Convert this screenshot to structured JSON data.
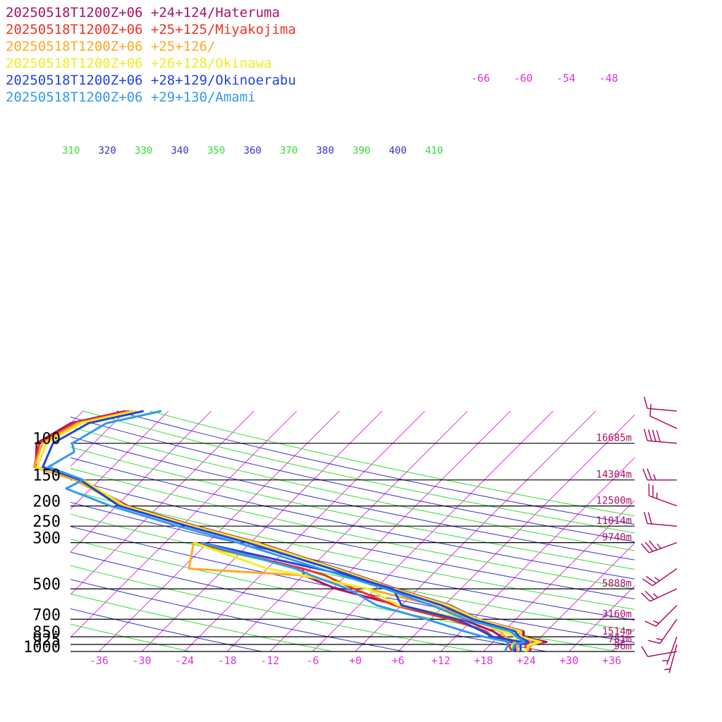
{
  "colors": {
    "isobar": "#000000",
    "isotherm": "#dd33dd",
    "adiabat_blue": "#3333cc",
    "adiabat_green": "#33dd33",
    "barb": "#aa1166"
  },
  "legend": [
    {
      "label": "20250518T1200Z+06 +24+124/Hateruma",
      "color": "#aa1166"
    },
    {
      "label": "20250518T1200Z+06 +25+125/Miyakojima",
      "color": "#ee3322"
    },
    {
      "label": "20250518T1200Z+06 +25+126/",
      "color": "#ffaa22"
    },
    {
      "label": "20250518T1200Z+06 +26+128/Okinawa",
      "color": "#eeee22"
    },
    {
      "label": "20250518T1200Z+06 +28+129/Okinoerabu",
      "color": "#2244dd"
    },
    {
      "label": "20250518T1200Z+06 +29+130/Amami",
      "color": "#3399ee"
    }
  ],
  "chart_data": {
    "type": "line",
    "title": "",
    "xlabel": "",
    "ylabel": "",
    "pressure_levels": [
      {
        "p": 100,
        "label": "100",
        "height": "16685m"
      },
      {
        "p": 150,
        "label": "150",
        "height": "14304m"
      },
      {
        "p": 200,
        "label": "200",
        "height": "12500m"
      },
      {
        "p": 250,
        "label": "250",
        "height": "11014m"
      },
      {
        "p": 300,
        "label": "300",
        "height": "9740m"
      },
      {
        "p": 500,
        "label": "500",
        "height": "5888m"
      },
      {
        "p": 700,
        "label": "700",
        "height": "3160m"
      },
      {
        "p": 850,
        "label": "850",
        "height": "1514m"
      },
      {
        "p": 925,
        "label": "925",
        "height": "781m"
      },
      {
        "p": 1000,
        "label": "1000",
        "height": "96m"
      }
    ],
    "x_ticks": [
      {
        "v": -36,
        "label": "-36"
      },
      {
        "v": -30,
        "label": "-30"
      },
      {
        "v": -24,
        "label": "-24"
      },
      {
        "v": -18,
        "label": "-18"
      },
      {
        "v": -12,
        "label": "-12"
      },
      {
        "v": -6,
        "label": "-6"
      },
      {
        "v": 0,
        "label": "+0"
      },
      {
        "v": 6,
        "label": "+6"
      },
      {
        "v": 12,
        "label": "+12"
      },
      {
        "v": 18,
        "label": "+18"
      },
      {
        "v": 24,
        "label": "+24"
      },
      {
        "v": 30,
        "label": "+30"
      },
      {
        "v": 36,
        "label": "+36"
      }
    ],
    "upper_temp_labels": [
      "-66",
      "-60",
      "-54",
      "-48"
    ],
    "theta_labels": [
      {
        "label": "310",
        "green": true
      },
      {
        "label": "320",
        "green": false
      },
      {
        "label": "330",
        "green": true
      },
      {
        "label": "340",
        "green": false
      },
      {
        "label": "350",
        "green": true
      },
      {
        "label": "360",
        "green": false
      },
      {
        "label": "370",
        "green": true
      },
      {
        "label": "380",
        "green": false
      },
      {
        "label": "390",
        "green": true
      },
      {
        "label": "400",
        "green": false
      },
      {
        "label": "410",
        "green": true
      }
    ],
    "series": [
      {
        "name": "20250518T1200Z+06 +24+124/Hateruma",
        "temperature": [
          [
            1000,
            24.6
          ],
          [
            925,
            23.4
          ],
          [
            900,
            25.5
          ],
          [
            850,
            21.6
          ],
          [
            800,
            20.8
          ],
          [
            700,
            12.8
          ],
          [
            600,
            6.8
          ],
          [
            500,
            -3.1
          ],
          [
            400,
            -14.1
          ],
          [
            300,
            -29.0
          ],
          [
            250,
            -40.0
          ],
          [
            200,
            -52.4
          ],
          [
            150,
            -62.9
          ],
          [
            130,
            -70.8
          ],
          [
            100,
            -74.0
          ],
          [
            80,
            -72.0
          ],
          [
            70,
            -66.0
          ]
        ],
        "dewpoint": [
          [
            1000,
            22.5
          ],
          [
            925,
            21.4
          ],
          [
            900,
            20.5
          ],
          [
            850,
            18.5
          ],
          [
            800,
            16.5
          ],
          [
            700,
            10.5
          ],
          [
            600,
            -0.5
          ],
          [
            500,
            -11.5
          ],
          [
            430,
            -18.0
          ],
          [
            400,
            -19.0
          ],
          [
            300,
            -38.0
          ]
        ]
      },
      {
        "name": "20250518T1200Z+06 +25+125/Miyakojima",
        "temperature": [
          [
            1000,
            24.2
          ],
          [
            925,
            22.8
          ],
          [
            900,
            24.0
          ],
          [
            850,
            21.3
          ],
          [
            800,
            20.6
          ],
          [
            700,
            12.6
          ],
          [
            600,
            6.4
          ],
          [
            500,
            -3.3
          ],
          [
            400,
            -14.3
          ],
          [
            300,
            -29.2
          ],
          [
            250,
            -40.2
          ],
          [
            200,
            -52.6
          ],
          [
            150,
            -63.3
          ],
          [
            130,
            -71.0
          ],
          [
            100,
            -73.6
          ],
          [
            80,
            -71.5
          ],
          [
            70,
            -65.5
          ]
        ],
        "dewpoint": [
          [
            1000,
            22.0
          ],
          [
            925,
            20.5
          ],
          [
            900,
            20.0
          ],
          [
            850,
            17.2
          ],
          [
            800,
            15.5
          ],
          [
            700,
            8.8
          ],
          [
            600,
            -1.0
          ],
          [
            500,
            -9.0
          ],
          [
            430,
            -15.0
          ],
          [
            400,
            -19.0
          ],
          [
            300,
            -38.0
          ]
        ]
      },
      {
        "name": "20250518T1200Z+06 +25+126/",
        "temperature": [
          [
            1000,
            24.0
          ],
          [
            925,
            23.8
          ],
          [
            900,
            24.8
          ],
          [
            850,
            21.0
          ],
          [
            800,
            20.2
          ],
          [
            700,
            12.4
          ],
          [
            600,
            6.2
          ],
          [
            500,
            -3.5
          ],
          [
            400,
            -14.5
          ],
          [
            300,
            -29.6
          ],
          [
            250,
            -40.5
          ],
          [
            200,
            -53.0
          ],
          [
            150,
            -63.5
          ],
          [
            130,
            -71.0
          ],
          [
            100,
            -73.2
          ],
          [
            80,
            -71.0
          ],
          [
            70,
            -65.0
          ]
        ],
        "dewpoint": [
          [
            1000,
            22.8
          ],
          [
            925,
            21.6
          ],
          [
            900,
            21.2
          ],
          [
            850,
            19.0
          ],
          [
            800,
            17.5
          ],
          [
            700,
            11.8
          ],
          [
            600,
            4.5
          ],
          [
            500,
            -7.0
          ],
          [
            430,
            -18.5
          ],
          [
            400,
            -35.0
          ],
          [
            300,
            -38.0
          ]
        ]
      },
      {
        "name": "20250518T1200Z+06 +26+128/Okinawa",
        "temperature": [
          [
            1000,
            23.8
          ],
          [
            925,
            23.5
          ],
          [
            900,
            24.6
          ],
          [
            850,
            21.2
          ],
          [
            800,
            20.4
          ],
          [
            700,
            12.7
          ],
          [
            600,
            6.5
          ],
          [
            500,
            -3.4
          ],
          [
            400,
            -14.4
          ],
          [
            300,
            -29.4
          ],
          [
            250,
            -40.4
          ],
          [
            200,
            -52.8
          ],
          [
            150,
            -62.3
          ],
          [
            130,
            -70.6
          ],
          [
            100,
            -72.6
          ],
          [
            80,
            -70.5
          ],
          [
            70,
            -64.5
          ]
        ],
        "dewpoint": [
          [
            1000,
            22.2
          ],
          [
            925,
            21.0
          ],
          [
            900,
            21.5
          ],
          [
            850,
            20.5
          ],
          [
            800,
            18.0
          ],
          [
            700,
            11.2
          ],
          [
            600,
            -0.5
          ],
          [
            500,
            -7.0
          ],
          [
            430,
            -18.0
          ],
          [
            400,
            -24.0
          ],
          [
            300,
            -38.0
          ]
        ]
      },
      {
        "name": "20250518T1200Z+06 +28+129/Okinoerabu",
        "temperature": [
          [
            1000,
            23.2
          ],
          [
            925,
            22.2
          ],
          [
            900,
            23.0
          ],
          [
            850,
            20.9
          ],
          [
            800,
            19.6
          ],
          [
            700,
            12.0
          ],
          [
            600,
            5.6
          ],
          [
            500,
            -3.9
          ],
          [
            400,
            -15.1
          ],
          [
            300,
            -30.5
          ],
          [
            250,
            -41.2
          ],
          [
            200,
            -53.6
          ],
          [
            150,
            -62.7
          ],
          [
            130,
            -69.8
          ],
          [
            100,
            -71.7
          ],
          [
            80,
            -69.5
          ],
          [
            70,
            -63.5
          ]
        ],
        "dewpoint": [
          [
            1000,
            22.3
          ],
          [
            925,
            21.4
          ],
          [
            900,
            22.0
          ],
          [
            850,
            17.2
          ],
          [
            800,
            15.0
          ],
          [
            700,
            9.8
          ],
          [
            600,
            0.0
          ],
          [
            500,
            -3.5
          ],
          [
            430,
            -12.0
          ],
          [
            400,
            -17.0
          ],
          [
            300,
            -37.0
          ]
        ]
      },
      {
        "name": "20250518T1200Z+06 +29+130/Amami",
        "temperature": [
          [
            1000,
            22.0
          ],
          [
            925,
            21.4
          ],
          [
            900,
            22.4
          ],
          [
            850,
            20.6
          ],
          [
            800,
            19.0
          ],
          [
            700,
            11.0
          ],
          [
            600,
            4.2
          ],
          [
            500,
            -4.6
          ],
          [
            400,
            -16.6
          ],
          [
            300,
            -31.8
          ],
          [
            250,
            -42.5
          ],
          [
            200,
            -54.8
          ],
          [
            165,
            -63.5
          ],
          [
            150,
            -62.3
          ],
          [
            130,
            -69.0
          ],
          [
            110,
            -67.5
          ],
          [
            100,
            -69.0
          ],
          [
            80,
            -67.0
          ],
          [
            70,
            -61.0
          ]
        ],
        "dewpoint": [
          [
            1000,
            21.0
          ],
          [
            925,
            20.5
          ],
          [
            900,
            20.3
          ],
          [
            850,
            16.0
          ],
          [
            800,
            12.5
          ],
          [
            700,
            5.5
          ],
          [
            600,
            -3.5
          ],
          [
            500,
            -9.8
          ],
          [
            430,
            -17.0
          ],
          [
            400,
            -20.0
          ],
          [
            300,
            -37.0
          ]
        ]
      }
    ],
    "wind_barbs": [
      {
        "p": 70,
        "speed_kt": 10,
        "dir_deg": 275
      },
      {
        "p": 85,
        "speed_kt": 10,
        "dir_deg": 295
      },
      {
        "p": 100,
        "speed_kt": 40,
        "dir_deg": 275
      },
      {
        "p": 150,
        "speed_kt": 25,
        "dir_deg": 270
      },
      {
        "p": 200,
        "speed_kt": 25,
        "dir_deg": 290
      },
      {
        "p": 250,
        "speed_kt": 20,
        "dir_deg": 275
      },
      {
        "p": 300,
        "speed_kt": 35,
        "dir_deg": 250
      },
      {
        "p": 400,
        "speed_kt": 25,
        "dir_deg": 235
      },
      {
        "p": 500,
        "speed_kt": 25,
        "dir_deg": 245
      },
      {
        "p": 600,
        "speed_kt": 15,
        "dir_deg": 225
      },
      {
        "p": 700,
        "speed_kt": 15,
        "dir_deg": 215
      },
      {
        "p": 850,
        "speed_kt": 5,
        "dir_deg": 200
      },
      {
        "p": 925,
        "speed_kt": 5,
        "dir_deg": 195
      },
      {
        "p": 1000,
        "speed_kt": 10,
        "dir_deg": 260
      }
    ]
  }
}
